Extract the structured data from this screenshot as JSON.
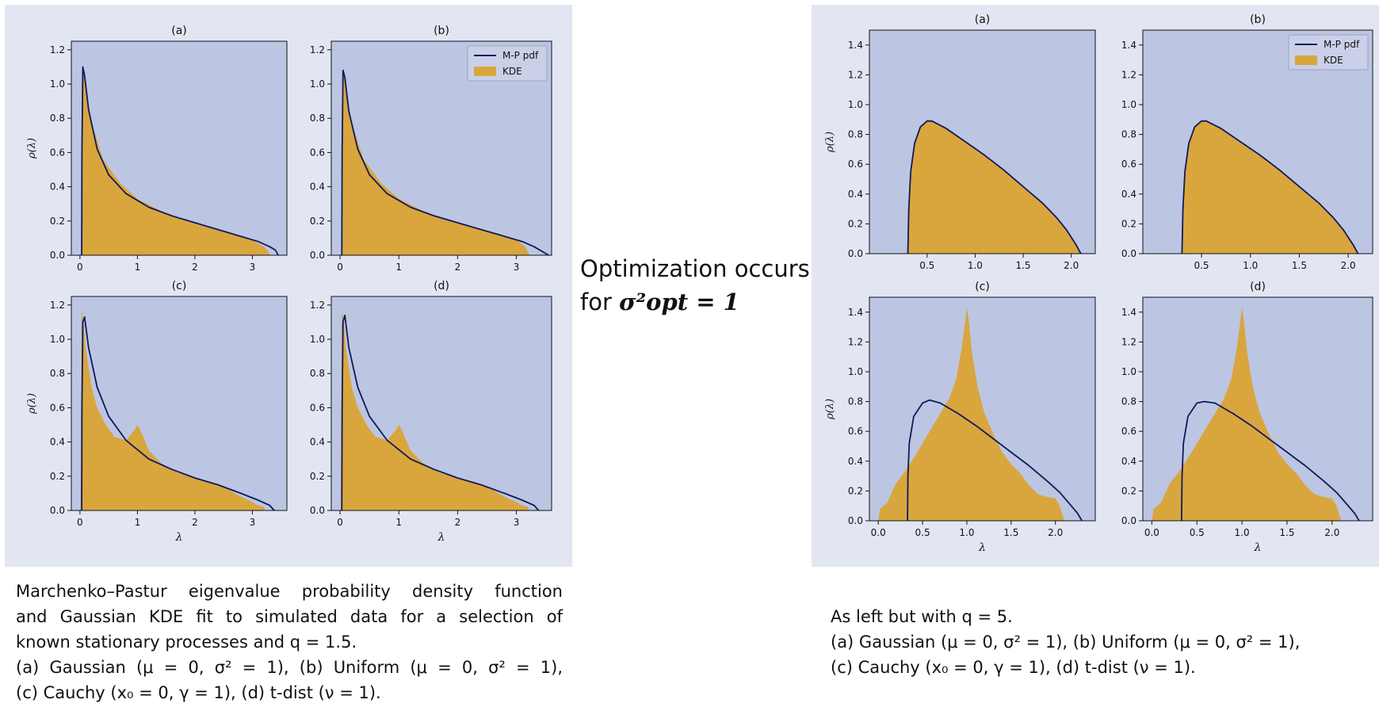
{
  "middle": {
    "line1": "Optimization occurs",
    "line2_prefix": "for ",
    "line2_math": "σ²opt = 1"
  },
  "captions": {
    "left": [
      "Marchenko–Pastur eigenvalue probability density function",
      "and Gaussian KDE fit to simulated data for a selection of",
      "known stationary processes and q = 1.5.",
      "(a) Gaussian (μ = 0, σ² = 1), (b) Uniform (μ = 0, σ² = 1),",
      "(c) Cauchy (x₀ = 0, γ = 1), (d) t-dist (ν = 1)."
    ],
    "right": [
      "As left but with q = 5.",
      "(a) Gaussian (μ = 0, σ² = 1), (b) Uniform (μ = 0, σ² = 1),",
      "(c) Cauchy (x₀ = 0, γ = 1), (d) t-dist (ν = 1)."
    ]
  },
  "colors": {
    "plot_bg": "#bcc6e3",
    "figure_bg": "#e2e6f3",
    "kde_fill": "#d9a63d",
    "mp_line": "#0f1a5a"
  },
  "chart_data": [
    {
      "type": "area",
      "figure": "left",
      "panel": "(a)",
      "title": "(a)",
      "xlabel": "",
      "ylabel": "ρ(λ)",
      "xlim": [
        -0.15,
        3.6
      ],
      "ylim": [
        0,
        1.25
      ],
      "xticks": [
        0,
        1,
        2,
        3
      ],
      "xticklabels": [
        "0",
        "1",
        "2",
        "3"
      ],
      "yticks": [
        0,
        0.2,
        0.4,
        0.6,
        0.8,
        1.0,
        1.2
      ],
      "yticklabels": [
        "0.0",
        "0.2",
        "0.4",
        "0.6",
        "0.8",
        "1.0",
        "1.2"
      ],
      "legend": null,
      "series": [
        {
          "name": "M-P pdf",
          "kind": "line",
          "x": [
            0.03,
            0.035,
            0.05,
            0.08,
            0.15,
            0.3,
            0.5,
            0.8,
            1.2,
            1.6,
            2.0,
            2.4,
            2.8,
            3.1,
            3.3,
            3.4,
            3.45
          ],
          "y": [
            0.0,
            0.6,
            1.1,
            1.05,
            0.85,
            0.62,
            0.47,
            0.36,
            0.28,
            0.23,
            0.19,
            0.15,
            0.11,
            0.08,
            0.05,
            0.03,
            0.0
          ]
        },
        {
          "name": "KDE",
          "kind": "area",
          "x": [
            0.02,
            0.04,
            0.06,
            0.1,
            0.2,
            0.4,
            0.7,
            1.0,
            1.4,
            1.8,
            2.2,
            2.6,
            3.0,
            3.2,
            3.28,
            3.3
          ],
          "y": [
            0.0,
            1.05,
            1.08,
            0.98,
            0.78,
            0.56,
            0.42,
            0.33,
            0.26,
            0.21,
            0.17,
            0.13,
            0.09,
            0.05,
            0.02,
            0.0
          ]
        }
      ]
    },
    {
      "type": "area",
      "figure": "left",
      "panel": "(b)",
      "title": "(b)",
      "xlabel": "",
      "ylabel": "",
      "xlim": [
        -0.15,
        3.6
      ],
      "ylim": [
        0,
        1.25
      ],
      "xticks": [
        0,
        1,
        2,
        3
      ],
      "xticklabels": [
        "0",
        "1",
        "2",
        "3"
      ],
      "yticks": [
        0,
        0.2,
        0.4,
        0.6,
        0.8,
        1.0,
        1.2
      ],
      "yticklabels": [
        "0.0",
        "0.2",
        "0.4",
        "0.6",
        "0.8",
        "1.0",
        "1.2"
      ],
      "legend": {
        "placement": "top-right",
        "entries": [
          "M-P pdf",
          "KDE"
        ]
      },
      "series": [
        {
          "name": "M-P pdf",
          "kind": "line",
          "x": [
            0.03,
            0.035,
            0.05,
            0.08,
            0.15,
            0.3,
            0.5,
            0.8,
            1.2,
            1.6,
            2.0,
            2.4,
            2.8,
            3.1,
            3.3,
            3.45,
            3.55
          ],
          "y": [
            0.0,
            0.6,
            1.08,
            1.04,
            0.84,
            0.62,
            0.47,
            0.36,
            0.28,
            0.23,
            0.19,
            0.15,
            0.11,
            0.08,
            0.05,
            0.02,
            0.0
          ]
        },
        {
          "name": "KDE",
          "kind": "area",
          "x": [
            0.02,
            0.04,
            0.06,
            0.1,
            0.2,
            0.4,
            0.7,
            1.0,
            1.4,
            1.8,
            2.2,
            2.6,
            3.0,
            3.15,
            3.2,
            3.22
          ],
          "y": [
            0.0,
            1.03,
            1.06,
            0.97,
            0.77,
            0.56,
            0.42,
            0.33,
            0.26,
            0.21,
            0.17,
            0.13,
            0.09,
            0.05,
            0.02,
            0.0
          ]
        }
      ]
    },
    {
      "type": "area",
      "figure": "left",
      "panel": "(c)",
      "title": "(c)",
      "xlabel": "λ",
      "ylabel": "ρ(λ)",
      "xlim": [
        -0.15,
        3.6
      ],
      "ylim": [
        0,
        1.25
      ],
      "xticks": [
        0,
        1,
        2,
        3
      ],
      "xticklabels": [
        "0",
        "1",
        "2",
        "3"
      ],
      "yticks": [
        0,
        0.2,
        0.4,
        0.6,
        0.8,
        1.0,
        1.2
      ],
      "yticklabels": [
        "0.0",
        "0.2",
        "0.4",
        "0.6",
        "0.8",
        "1.0",
        "1.2"
      ],
      "legend": null,
      "series": [
        {
          "name": "M-P pdf",
          "kind": "line",
          "x": [
            0.03,
            0.035,
            0.05,
            0.08,
            0.15,
            0.3,
            0.5,
            0.8,
            1.2,
            1.6,
            2.0,
            2.4,
            2.8,
            3.1,
            3.3,
            3.38
          ],
          "y": [
            0.0,
            0.6,
            1.1,
            1.13,
            0.95,
            0.72,
            0.55,
            0.41,
            0.3,
            0.24,
            0.19,
            0.15,
            0.1,
            0.06,
            0.03,
            0.0
          ]
        },
        {
          "name": "KDE",
          "kind": "area",
          "x": [
            0.01,
            0.03,
            0.06,
            0.1,
            0.2,
            0.3,
            0.45,
            0.6,
            0.8,
            0.95,
            1.0,
            1.05,
            1.2,
            1.4,
            1.7,
            2.0,
            2.3,
            2.6,
            2.8,
            3.0,
            3.1,
            3.2,
            3.22
          ],
          "y": [
            0.0,
            1.18,
            1.1,
            0.95,
            0.72,
            0.6,
            0.5,
            0.43,
            0.41,
            0.47,
            0.5,
            0.47,
            0.35,
            0.28,
            0.22,
            0.19,
            0.16,
            0.12,
            0.08,
            0.05,
            0.03,
            0.02,
            0.0
          ]
        }
      ]
    },
    {
      "type": "area",
      "figure": "left",
      "panel": "(d)",
      "title": "(d)",
      "xlabel": "λ",
      "ylabel": "",
      "xlim": [
        -0.15,
        3.6
      ],
      "ylim": [
        0,
        1.25
      ],
      "xticks": [
        0,
        1,
        2,
        3
      ],
      "xticklabels": [
        "0",
        "1",
        "2",
        "3"
      ],
      "yticks": [
        0,
        0.2,
        0.4,
        0.6,
        0.8,
        1.0,
        1.2
      ],
      "yticklabels": [
        "0.0",
        "0.2",
        "0.4",
        "0.6",
        "0.8",
        "1.0",
        "1.2"
      ],
      "legend": null,
      "series": [
        {
          "name": "M-P pdf",
          "kind": "line",
          "x": [
            0.03,
            0.035,
            0.05,
            0.08,
            0.15,
            0.3,
            0.5,
            0.8,
            1.2,
            1.6,
            2.0,
            2.4,
            2.8,
            3.1,
            3.3,
            3.38
          ],
          "y": [
            0.0,
            0.6,
            1.1,
            1.14,
            0.95,
            0.72,
            0.55,
            0.41,
            0.3,
            0.24,
            0.19,
            0.15,
            0.1,
            0.06,
            0.03,
            0.0
          ]
        },
        {
          "name": "KDE",
          "kind": "area",
          "x": [
            0.01,
            0.03,
            0.06,
            0.1,
            0.2,
            0.3,
            0.45,
            0.6,
            0.8,
            0.95,
            1.0,
            1.05,
            1.2,
            1.4,
            1.7,
            2.0,
            2.3,
            2.6,
            2.8,
            3.0,
            3.1,
            3.2,
            3.22
          ],
          "y": [
            0.0,
            1.16,
            1.12,
            0.95,
            0.72,
            0.6,
            0.5,
            0.43,
            0.41,
            0.47,
            0.5,
            0.47,
            0.35,
            0.28,
            0.22,
            0.19,
            0.16,
            0.12,
            0.08,
            0.05,
            0.03,
            0.02,
            0.0
          ]
        }
      ]
    },
    {
      "type": "area",
      "figure": "right",
      "panel": "(a)",
      "title": "(a)",
      "xlabel": "",
      "ylabel": "ρ(λ)",
      "xlim": [
        -0.1,
        2.25
      ],
      "ylim": [
        0,
        1.5
      ],
      "xticks": [
        0.5,
        1.0,
        1.5,
        2.0
      ],
      "xticklabels": [
        "0.5",
        "1.0",
        "1.5",
        "2.0"
      ],
      "yticks": [
        0,
        0.2,
        0.4,
        0.6,
        0.8,
        1.0,
        1.2,
        1.4
      ],
      "yticklabels": [
        "0.0",
        "0.2",
        "0.4",
        "0.6",
        "0.8",
        "1.0",
        "1.2",
        "1.4"
      ],
      "legend": null,
      "series": [
        {
          "name": "M-P pdf",
          "kind": "line",
          "x": [
            0.3,
            0.31,
            0.33,
            0.37,
            0.43,
            0.5,
            0.55,
            0.7,
            0.9,
            1.1,
            1.3,
            1.5,
            1.7,
            1.85,
            1.95,
            2.05,
            2.1
          ],
          "y": [
            0.0,
            0.3,
            0.55,
            0.74,
            0.85,
            0.89,
            0.89,
            0.84,
            0.75,
            0.66,
            0.56,
            0.45,
            0.34,
            0.24,
            0.16,
            0.06,
            0.0
          ]
        },
        {
          "name": "KDE",
          "kind": "area",
          "x": [
            0.3,
            0.31,
            0.33,
            0.37,
            0.43,
            0.5,
            0.55,
            0.7,
            0.9,
            1.1,
            1.3,
            1.5,
            1.7,
            1.85,
            1.95,
            2.05,
            2.1
          ],
          "y": [
            0.0,
            0.3,
            0.55,
            0.74,
            0.85,
            0.89,
            0.89,
            0.84,
            0.75,
            0.66,
            0.56,
            0.45,
            0.34,
            0.24,
            0.16,
            0.06,
            0.0
          ]
        }
      ]
    },
    {
      "type": "area",
      "figure": "right",
      "panel": "(b)",
      "title": "(b)",
      "xlabel": "",
      "ylabel": "",
      "xlim": [
        -0.1,
        2.25
      ],
      "ylim": [
        0,
        1.5
      ],
      "xticks": [
        0.5,
        1.0,
        1.5,
        2.0
      ],
      "xticklabels": [
        "0.5",
        "1.0",
        "1.5",
        "2.0"
      ],
      "yticks": [
        0,
        0.2,
        0.4,
        0.6,
        0.8,
        1.0,
        1.2,
        1.4
      ],
      "yticklabels": [
        "0.0",
        "0.2",
        "0.4",
        "0.6",
        "0.8",
        "1.0",
        "1.2",
        "1.4"
      ],
      "legend": {
        "placement": "top-right",
        "entries": [
          "M-P pdf",
          "KDE"
        ]
      },
      "series": [
        {
          "name": "M-P pdf",
          "kind": "line",
          "x": [
            0.3,
            0.31,
            0.33,
            0.37,
            0.43,
            0.5,
            0.55,
            0.7,
            0.9,
            1.1,
            1.3,
            1.5,
            1.7,
            1.85,
            1.95,
            2.05,
            2.1
          ],
          "y": [
            0.0,
            0.3,
            0.55,
            0.74,
            0.85,
            0.89,
            0.89,
            0.84,
            0.75,
            0.66,
            0.56,
            0.45,
            0.34,
            0.24,
            0.16,
            0.06,
            0.0
          ]
        },
        {
          "name": "KDE",
          "kind": "area",
          "x": [
            0.3,
            0.31,
            0.33,
            0.37,
            0.43,
            0.5,
            0.55,
            0.7,
            0.9,
            1.1,
            1.3,
            1.5,
            1.7,
            1.85,
            1.95,
            2.05,
            2.1
          ],
          "y": [
            0.0,
            0.3,
            0.55,
            0.74,
            0.85,
            0.89,
            0.89,
            0.84,
            0.75,
            0.66,
            0.56,
            0.45,
            0.34,
            0.24,
            0.16,
            0.06,
            0.0
          ]
        }
      ]
    },
    {
      "type": "area",
      "figure": "right",
      "panel": "(c)",
      "title": "(c)",
      "xlabel": "λ",
      "ylabel": "ρ(λ)",
      "xlim": [
        -0.1,
        2.45
      ],
      "ylim": [
        0,
        1.5
      ],
      "xticks": [
        0.0,
        0.5,
        1.0,
        1.5,
        2.0
      ],
      "xticklabels": [
        "0.0",
        "0.5",
        "1.0",
        "1.5",
        "2.0"
      ],
      "yticks": [
        0,
        0.2,
        0.4,
        0.6,
        0.8,
        1.0,
        1.2,
        1.4
      ],
      "yticklabels": [
        "0.0",
        "0.2",
        "0.4",
        "0.6",
        "0.8",
        "1.0",
        "1.2",
        "1.4"
      ],
      "legend": null,
      "series": [
        {
          "name": "M-P pdf",
          "kind": "line",
          "x": [
            0.33,
            0.335,
            0.35,
            0.4,
            0.5,
            0.58,
            0.7,
            0.9,
            1.1,
            1.3,
            1.5,
            1.7,
            1.9,
            2.05,
            2.15,
            2.25,
            2.3
          ],
          "y": [
            0.0,
            0.3,
            0.52,
            0.7,
            0.79,
            0.81,
            0.79,
            0.72,
            0.64,
            0.55,
            0.46,
            0.37,
            0.27,
            0.19,
            0.12,
            0.05,
            0.0
          ]
        },
        {
          "name": "KDE",
          "kind": "area",
          "x": [
            0.0,
            0.02,
            0.1,
            0.2,
            0.3,
            0.4,
            0.5,
            0.6,
            0.7,
            0.8,
            0.88,
            0.94,
            0.98,
            1.0,
            1.02,
            1.06,
            1.12,
            1.2,
            1.3,
            1.4,
            1.5,
            1.6,
            1.7,
            1.8,
            1.9,
            2.0,
            2.05,
            2.08,
            2.1
          ],
          "y": [
            0.0,
            0.08,
            0.12,
            0.25,
            0.33,
            0.42,
            0.52,
            0.62,
            0.72,
            0.82,
            0.95,
            1.15,
            1.33,
            1.43,
            1.35,
            1.12,
            0.9,
            0.72,
            0.58,
            0.46,
            0.38,
            0.32,
            0.24,
            0.18,
            0.16,
            0.15,
            0.1,
            0.04,
            0.0
          ]
        }
      ]
    },
    {
      "type": "area",
      "figure": "right",
      "panel": "(d)",
      "title": "(d)",
      "xlabel": "λ",
      "ylabel": "",
      "xlim": [
        -0.1,
        2.45
      ],
      "ylim": [
        0,
        1.5
      ],
      "xticks": [
        0.0,
        0.5,
        1.0,
        1.5,
        2.0
      ],
      "xticklabels": [
        "0.0",
        "0.5",
        "1.0",
        "1.5",
        "2.0"
      ],
      "yticks": [
        0,
        0.2,
        0.4,
        0.6,
        0.8,
        1.0,
        1.2,
        1.4
      ],
      "yticklabels": [
        "0.0",
        "0.2",
        "0.4",
        "0.6",
        "0.8",
        "1.0",
        "1.2",
        "1.4"
      ],
      "legend": null,
      "series": [
        {
          "name": "M-P pdf",
          "kind": "line",
          "x": [
            0.33,
            0.335,
            0.35,
            0.4,
            0.5,
            0.58,
            0.7,
            0.9,
            1.1,
            1.3,
            1.5,
            1.7,
            1.9,
            2.05,
            2.15,
            2.25,
            2.3
          ],
          "y": [
            0.0,
            0.3,
            0.52,
            0.7,
            0.79,
            0.8,
            0.79,
            0.72,
            0.64,
            0.55,
            0.46,
            0.37,
            0.27,
            0.19,
            0.12,
            0.05,
            0.0
          ]
        },
        {
          "name": "KDE",
          "kind": "area",
          "x": [
            0.0,
            0.02,
            0.1,
            0.2,
            0.3,
            0.4,
            0.5,
            0.6,
            0.7,
            0.8,
            0.88,
            0.94,
            0.98,
            1.0,
            1.02,
            1.06,
            1.12,
            1.2,
            1.3,
            1.4,
            1.5,
            1.6,
            1.7,
            1.8,
            1.9,
            2.0,
            2.05,
            2.08,
            2.1
          ],
          "y": [
            0.0,
            0.08,
            0.12,
            0.25,
            0.33,
            0.42,
            0.52,
            0.62,
            0.72,
            0.82,
            0.95,
            1.15,
            1.33,
            1.43,
            1.35,
            1.12,
            0.9,
            0.72,
            0.58,
            0.46,
            0.38,
            0.32,
            0.24,
            0.18,
            0.16,
            0.15,
            0.1,
            0.04,
            0.0
          ]
        }
      ]
    }
  ]
}
